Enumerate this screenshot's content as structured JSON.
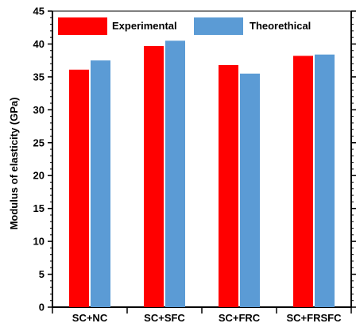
{
  "chart_data": {
    "type": "bar",
    "title": "",
    "xlabel": "",
    "ylabel": "Modulus of elasticity (GPa)",
    "ylim": [
      0,
      45
    ],
    "yticks": [
      0,
      5,
      10,
      15,
      20,
      25,
      30,
      35,
      40,
      45
    ],
    "categories": [
      "SC+NC",
      "SC+SFC",
      "SC+FRC",
      "SC+FRSFC"
    ],
    "series": [
      {
        "name": "Experimental",
        "color": "#ff0000",
        "values": [
          36.1,
          39.7,
          36.8,
          38.2
        ]
      },
      {
        "name": "Theorethical",
        "color": "#5b9bd5",
        "values": [
          37.5,
          40.5,
          35.5,
          38.4
        ]
      }
    ],
    "legend_position": "top",
    "grid": false
  }
}
